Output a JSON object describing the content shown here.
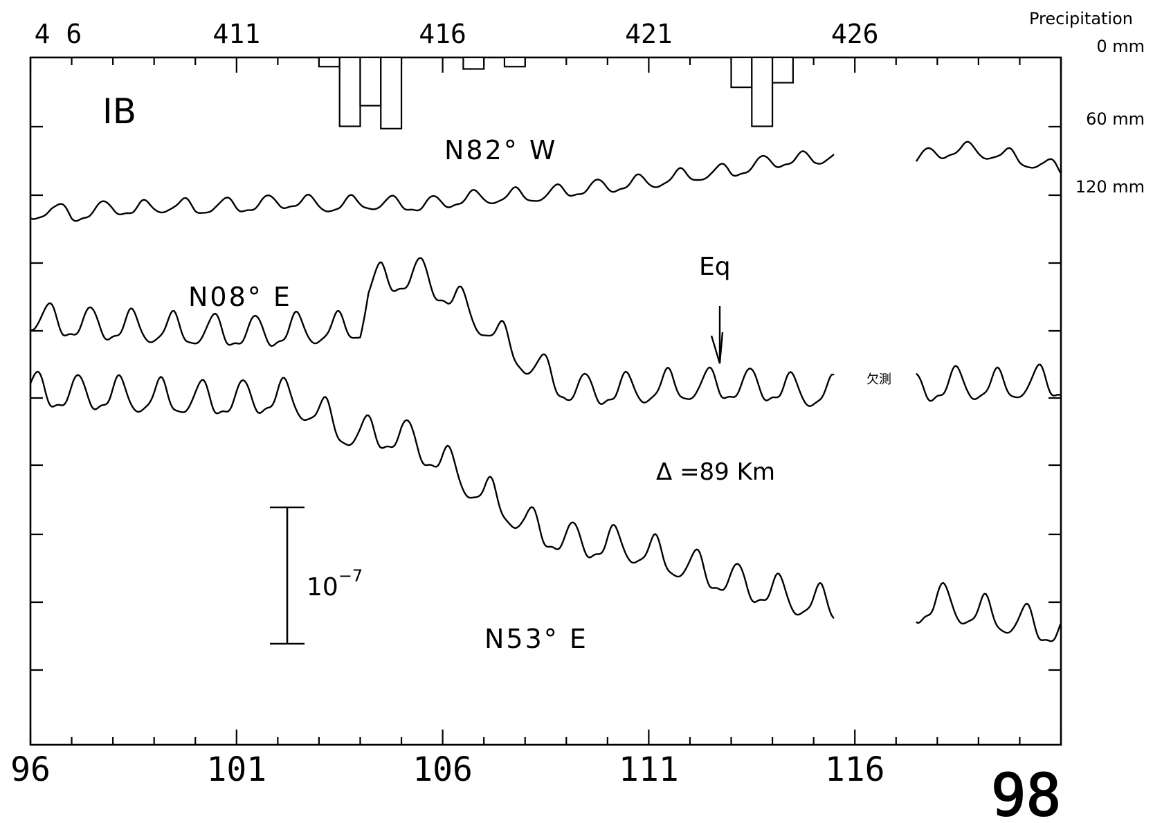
{
  "chart_data": {
    "type": "line",
    "panel_label": "IB",
    "page_number": "98",
    "x_axis": {
      "ticks": [
        "96",
        "101",
        "106",
        "111",
        "116"
      ],
      "range": [
        96,
        121
      ]
    },
    "top_axis": {
      "labels": [
        {
          "text": "4 6",
          "x": 96
        },
        {
          "text": "411",
          "x": 101
        },
        {
          "text": "416",
          "x": 106
        },
        {
          "text": "421",
          "x": 111
        },
        {
          "text": "426",
          "x": 116
        }
      ]
    },
    "precipitation": {
      "title": "Precipitation",
      "axis_labels": [
        "0 mm",
        "60 mm",
        "120 mm"
      ],
      "max_mm": 120,
      "bars": [
        {
          "x": 103.5,
          "mm": 8
        },
        {
          "x": 104,
          "mm": 60
        },
        {
          "x": 104.5,
          "mm": 42
        },
        {
          "x": 105,
          "mm": 62
        },
        {
          "x": 107,
          "mm": 10
        },
        {
          "x": 108,
          "mm": 8
        },
        {
          "x": 113.5,
          "mm": 26
        },
        {
          "x": 114,
          "mm": 60
        },
        {
          "x": 114.5,
          "mm": 22
        }
      ]
    },
    "series": [
      {
        "name": "N82° W",
        "points": [
          [
            96.0,
            312
          ],
          [
            96.5,
            300
          ],
          [
            97.0,
            313
          ],
          [
            97.5,
            305
          ],
          [
            98.0,
            300
          ],
          [
            98.5,
            303
          ],
          [
            99.0,
            300
          ],
          [
            99.5,
            296
          ],
          [
            100.0,
            302
          ],
          [
            100.5,
            297
          ],
          [
            101.0,
            298
          ],
          [
            101.5,
            296
          ],
          [
            102.0,
            292
          ],
          [
            102.5,
            292
          ],
          [
            103.0,
            296
          ],
          [
            103.5,
            298
          ],
          [
            104.0,
            292
          ],
          [
            104.5,
            296
          ],
          [
            105.0,
            294
          ],
          [
            105.5,
            298
          ],
          [
            106.0,
            292
          ],
          [
            106.5,
            288
          ],
          [
            107.0,
            286
          ],
          [
            107.5,
            284
          ],
          [
            108.0,
            283
          ],
          [
            108.5,
            282
          ],
          [
            109.0,
            276
          ],
          [
            109.5,
            272
          ],
          [
            110.0,
            270
          ],
          [
            110.5,
            265
          ],
          [
            111.0,
            264
          ],
          [
            111.5,
            258
          ],
          [
            112.0,
            254
          ],
          [
            112.5,
            250
          ],
          [
            113.0,
            248
          ],
          [
            113.5,
            240
          ],
          [
            114.0,
            234
          ],
          [
            114.5,
            230
          ],
          [
            115.0,
            232
          ],
          [
            115.5,
            220
          ]
        ],
        "points2": [
          [
            117.5,
            230
          ],
          [
            118.0,
            222
          ],
          [
            118.5,
            215
          ],
          [
            119.0,
            220
          ],
          [
            119.5,
            222
          ],
          [
            120.0,
            232
          ],
          [
            120.5,
            236
          ],
          [
            121.0,
            248
          ]
        ],
        "amp": 10
      },
      {
        "name": "N08° E",
        "points": [
          [
            96.0,
            460
          ],
          [
            96.5,
            465
          ],
          [
            97.0,
            468
          ],
          [
            97.5,
            470
          ],
          [
            98.0,
            472
          ],
          [
            98.5,
            474
          ],
          [
            99.0,
            476
          ],
          [
            99.5,
            478
          ],
          [
            100.0,
            479
          ],
          [
            100.5,
            480
          ],
          [
            101.0,
            481
          ],
          [
            101.5,
            482
          ],
          [
            102.0,
            480
          ],
          [
            102.5,
            478
          ],
          [
            103.0,
            477
          ],
          [
            103.5,
            478
          ],
          [
            104.0,
            470
          ],
          [
            104.2,
            420
          ],
          [
            104.5,
            405
          ],
          [
            105.0,
            402
          ],
          [
            105.5,
            398
          ],
          [
            106.0,
            420
          ],
          [
            106.5,
            445
          ],
          [
            107.0,
            468
          ],
          [
            107.5,
            495
          ],
          [
            108.0,
            522
          ],
          [
            108.5,
            540
          ],
          [
            109.0,
            562
          ],
          [
            109.5,
            566
          ],
          [
            110.0,
            564
          ],
          [
            110.5,
            565
          ],
          [
            111.0,
            562
          ],
          [
            111.5,
            560
          ],
          [
            112.0,
            559
          ],
          [
            112.5,
            558
          ],
          [
            113.0,
            558
          ],
          [
            113.5,
            558
          ],
          [
            114.0,
            560
          ],
          [
            114.5,
            566
          ],
          [
            115.5,
            570
          ]
        ],
        "points2": [
          [
            117.5,
            565
          ],
          [
            118.0,
            558
          ],
          [
            118.5,
            556
          ],
          [
            119.0,
            558
          ],
          [
            119.5,
            560
          ],
          [
            120.0,
            556
          ],
          [
            120.5,
            554
          ],
          [
            121.0,
            555
          ]
        ],
        "amp": 22
      },
      {
        "name": "N53° E",
        "points": [
          [
            96.0,
            565
          ],
          [
            96.5,
            568
          ],
          [
            97.0,
            570
          ],
          [
            97.5,
            570
          ],
          [
            98.0,
            572
          ],
          [
            98.5,
            574
          ],
          [
            99.0,
            576
          ],
          [
            99.5,
            576
          ],
          [
            100.0,
            578
          ],
          [
            100.5,
            578
          ],
          [
            101.0,
            578
          ],
          [
            101.5,
            576
          ],
          [
            102.0,
            574
          ],
          [
            102.5,
            582
          ],
          [
            103.0,
            598
          ],
          [
            103.5,
            620
          ],
          [
            104.0,
            630
          ],
          [
            104.5,
            628
          ],
          [
            105.0,
            630
          ],
          [
            105.5,
            648
          ],
          [
            106.0,
            668
          ],
          [
            106.5,
            692
          ],
          [
            107.0,
            715
          ],
          [
            107.5,
            732
          ],
          [
            108.0,
            758
          ],
          [
            108.5,
            770
          ],
          [
            109.0,
            782
          ],
          [
            109.5,
            784
          ],
          [
            110.0,
            788
          ],
          [
            110.5,
            790
          ],
          [
            111.0,
            800
          ],
          [
            111.5,
            810
          ],
          [
            112.0,
            820
          ],
          [
            112.5,
            830
          ],
          [
            113.0,
            840
          ],
          [
            113.5,
            848
          ],
          [
            114.0,
            856
          ],
          [
            114.5,
            866
          ],
          [
            115.0,
            872
          ],
          [
            115.5,
            878
          ]
        ],
        "points2": [
          [
            117.5,
            880
          ],
          [
            118.0,
            870
          ],
          [
            118.5,
            878
          ],
          [
            119.0,
            888
          ],
          [
            119.5,
            892
          ],
          [
            120.0,
            900
          ],
          [
            120.5,
            906
          ],
          [
            121.0,
            912
          ]
        ],
        "amp": 24
      }
    ],
    "annotations": {
      "eq": "Eq",
      "distance": "Δ =89 Km",
      "missing": "欠測",
      "scale": "10",
      "scale_exp": "−7"
    }
  }
}
